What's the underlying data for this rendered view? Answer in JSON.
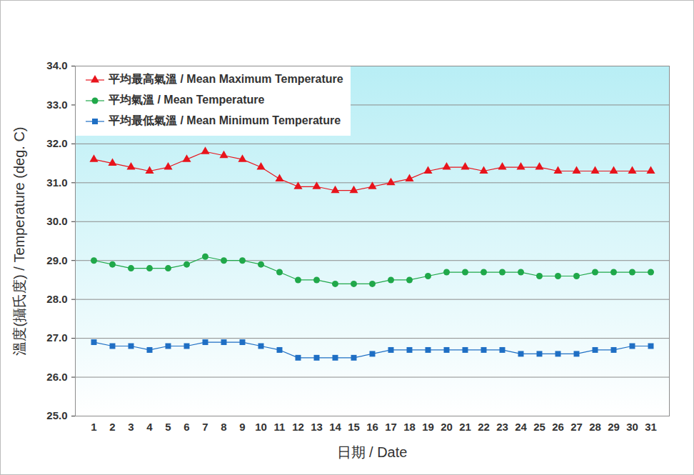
{
  "chart_data": {
    "type": "line",
    "x_label": "日期 / Date",
    "y_label": "溫度(攝氏度) / Temperature (deg. C)",
    "categories": [
      "1",
      "2",
      "3",
      "4",
      "5",
      "6",
      "7",
      "8",
      "9",
      "10",
      "11",
      "12",
      "13",
      "14",
      "15",
      "16",
      "17",
      "18",
      "19",
      "20",
      "21",
      "22",
      "23",
      "24",
      "25",
      "26",
      "27",
      "28",
      "29",
      "30",
      "31"
    ],
    "series": [
      {
        "name": "平均最高氣溫 / Mean Maximum Temperature",
        "color": "#e8141c",
        "marker": "triangle",
        "values": [
          31.6,
          31.5,
          31.4,
          31.3,
          31.4,
          31.6,
          31.8,
          31.7,
          31.6,
          31.4,
          31.1,
          30.9,
          30.9,
          30.8,
          30.8,
          30.9,
          31.0,
          31.1,
          31.3,
          31.4,
          31.4,
          31.3,
          31.4,
          31.4,
          31.4,
          31.3,
          31.3,
          31.3,
          31.3,
          31.3,
          31.3
        ]
      },
      {
        "name": "平均氣溫 / Mean Temperature",
        "color": "#20a84a",
        "marker": "circle",
        "values": [
          29.0,
          28.9,
          28.8,
          28.8,
          28.8,
          28.9,
          29.1,
          29.0,
          29.0,
          28.9,
          28.7,
          28.5,
          28.5,
          28.4,
          28.4,
          28.4,
          28.5,
          28.5,
          28.6,
          28.7,
          28.7,
          28.7,
          28.7,
          28.7,
          28.6,
          28.6,
          28.6,
          28.7,
          28.7,
          28.7,
          28.7
        ]
      },
      {
        "name": "平均最低氣溫 / Mean Minimum Temperature",
        "color": "#1f6fc4",
        "marker": "square",
        "values": [
          26.9,
          26.8,
          26.8,
          26.7,
          26.8,
          26.8,
          26.9,
          26.9,
          26.9,
          26.8,
          26.7,
          26.5,
          26.5,
          26.5,
          26.5,
          26.6,
          26.7,
          26.7,
          26.7,
          26.7,
          26.7,
          26.7,
          26.7,
          26.6,
          26.6,
          26.6,
          26.6,
          26.7,
          26.7,
          26.8,
          26.8
        ]
      }
    ],
    "ylim": [
      25,
      34
    ],
    "yticks": [
      {
        "value": 25,
        "label": "25.0"
      },
      {
        "value": 26,
        "label": "26.0"
      },
      {
        "value": 27,
        "label": "27.0"
      },
      {
        "value": 28,
        "label": "28.0"
      },
      {
        "value": 29,
        "label": "29.0"
      },
      {
        "value": 30,
        "label": "30.0"
      },
      {
        "value": 31,
        "label": "31.0"
      },
      {
        "value": 32,
        "label": "32.0"
      },
      {
        "value": 33,
        "label": "33.0"
      },
      {
        "value": 34,
        "label": "34.0"
      }
    ],
    "grid": true,
    "legend": "top-left"
  }
}
